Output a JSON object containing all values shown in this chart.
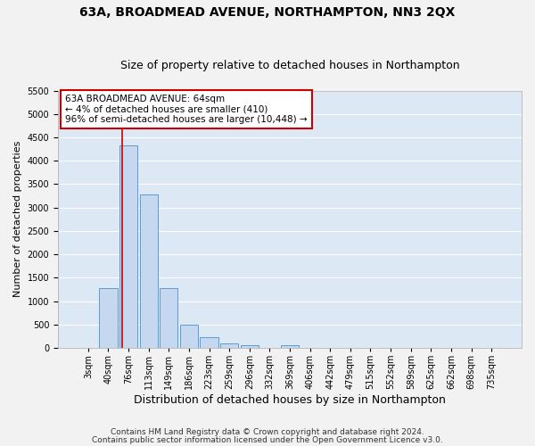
{
  "title": "63A, BROADMEAD AVENUE, NORTHAMPTON, NN3 2QX",
  "subtitle": "Size of property relative to detached houses in Northampton",
  "xlabel": "Distribution of detached houses by size in Northampton",
  "ylabel": "Number of detached properties",
  "footer1": "Contains HM Land Registry data © Crown copyright and database right 2024.",
  "footer2": "Contains public sector information licensed under the Open Government Licence v3.0.",
  "bar_labels": [
    "3sqm",
    "40sqm",
    "76sqm",
    "113sqm",
    "149sqm",
    "186sqm",
    "223sqm",
    "259sqm",
    "296sqm",
    "332sqm",
    "369sqm",
    "406sqm",
    "442sqm",
    "479sqm",
    "515sqm",
    "552sqm",
    "589sqm",
    "625sqm",
    "662sqm",
    "698sqm",
    "735sqm"
  ],
  "bar_values": [
    0,
    1270,
    4330,
    3280,
    1270,
    490,
    220,
    95,
    65,
    0,
    55,
    0,
    0,
    0,
    0,
    0,
    0,
    0,
    0,
    0,
    0
  ],
  "bar_color": "#c5d8f0",
  "bar_edge_color": "#5b9bd5",
  "annotation_line1": "63A BROADMEAD AVENUE: 64sqm",
  "annotation_line2": "← 4% of detached houses are smaller (410)",
  "annotation_line3": "96% of semi-detached houses are larger (10,448) →",
  "annotation_box_edgecolor": "#cc0000",
  "redline_color": "#cc0000",
  "background_color": "#dde8f5",
  "fig_background_color": "#f2f2f2",
  "grid_color": "#ffffff",
  "title_fontsize": 10,
  "subtitle_fontsize": 9,
  "xlabel_fontsize": 9,
  "ylabel_fontsize": 8,
  "tick_fontsize": 7,
  "annotation_fontsize": 7.5,
  "footer_fontsize": 6.5,
  "ylim": [
    0,
    5500
  ],
  "yticks": [
    0,
    500,
    1000,
    1500,
    2000,
    2500,
    3000,
    3500,
    4000,
    4500,
    5000,
    5500
  ]
}
